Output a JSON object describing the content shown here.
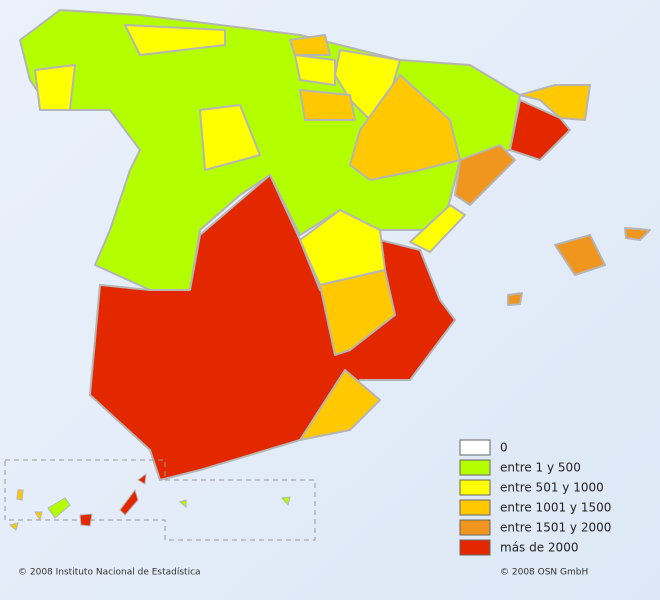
{
  "legend": [
    {
      "label": "0",
      "color": "#ffffff"
    },
    {
      "label": "entre 1 y 500",
      "color": "#b3ff00"
    },
    {
      "label": "entre 501 y 1000",
      "color": "#ffff00"
    },
    {
      "label": "entre 1001 y 1500",
      "color": "#ffc800"
    },
    {
      "label": "entre 1501 y 2000",
      "color": "#f0961e"
    },
    {
      "label": "más de 2000",
      "color": "#e32800"
    }
  ],
  "footer": {
    "left": "© 2008 Instituto Nacional de Estadística",
    "right": "© 2008 OSN GmbH"
  }
}
